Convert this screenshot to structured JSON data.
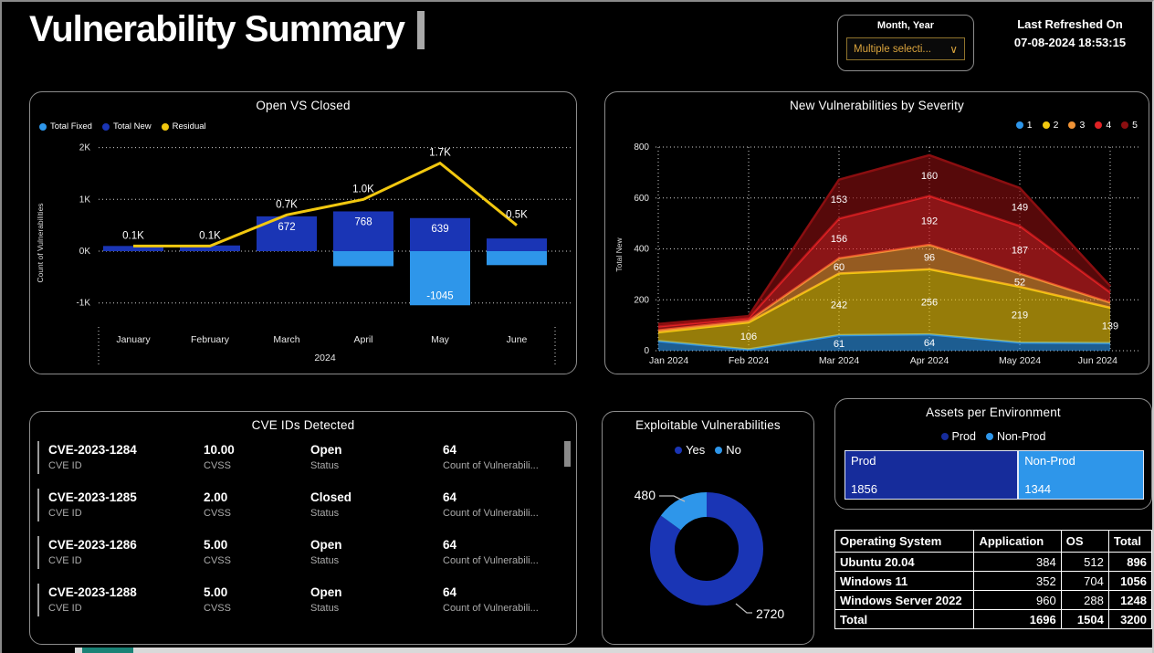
{
  "page": {
    "title": "Vulnerability Summary"
  },
  "filter": {
    "label": "Month, Year",
    "value": "Multiple selecti...",
    "chevron_icon": "chevron-down-icon"
  },
  "refresh": {
    "label": "Last Refreshed On",
    "timestamp": "07-08-2024 18:53:15"
  },
  "colors": {
    "light_blue": "#2E96EA",
    "dark_blue": "#1A35B5",
    "yellow": "#F2C80F",
    "orange": "#F09336",
    "red": "#E02225",
    "dark_red": "#8B0E10",
    "gold_text": "#D9A33C",
    "teal_accent": "#1A8276",
    "grid_dot": "#CFCFCF"
  },
  "chart_data": [
    {
      "type": "bar",
      "subtype": "stacked-column-with-line",
      "title": "Open VS Closed",
      "categories": [
        "January",
        "February",
        "March",
        "April",
        "May",
        "June"
      ],
      "year_label": "2024",
      "ylabel": "Count of Vulnerabilities",
      "yticks": [
        "2K",
        "1K",
        "0K",
        "-1K"
      ],
      "ytick_values": [
        2000,
        1000,
        0,
        -1000
      ],
      "ylim": [
        -1300,
        2200
      ],
      "series": [
        {
          "name": "Total Fixed",
          "type": "bar",
          "color": "#2E96EA",
          "values": [
            0,
            0,
            0,
            -290,
            -1045,
            -270
          ],
          "labels": [
            "",
            "",
            "",
            "",
            "-1045",
            ""
          ]
        },
        {
          "name": "Total New",
          "type": "bar",
          "color": "#1A35B5",
          "values": [
            100,
            110,
            672,
            768,
            639,
            245
          ],
          "labels": [
            "",
            "",
            "672",
            "768",
            "639",
            ""
          ]
        },
        {
          "name": "Residual",
          "type": "line",
          "color": "#F2C80F",
          "values": [
            100,
            100,
            700,
            1000,
            1700,
            500
          ],
          "labels": [
            "0.1K",
            "0.1K",
            "0.7K",
            "1.0K",
            "1.7K",
            "0.5K"
          ]
        }
      ],
      "grid": true,
      "legend_position": "top-left"
    },
    {
      "type": "area",
      "subtype": "stacked",
      "title": "New Vulnerabilities by Severity",
      "categories": [
        "Jan 2024",
        "Feb 2024",
        "Mar 2024",
        "Apr 2024",
        "May 2024",
        "Jun 2024"
      ],
      "ylabel": "Total New",
      "yticks": [
        "800",
        "600",
        "400",
        "200",
        "0"
      ],
      "ytick_values": [
        800,
        600,
        400,
        200,
        0
      ],
      "ylim": [
        0,
        800
      ],
      "series": [
        {
          "name": "1",
          "color": "#2E96EA",
          "values": [
            38,
            5,
            61,
            64,
            32,
            30
          ],
          "labels": [
            "",
            "",
            "61",
            "64",
            "",
            ""
          ]
        },
        {
          "name": "2",
          "color": "#F2C80F",
          "values": [
            34,
            106,
            242,
            256,
            219,
            139
          ],
          "labels": [
            "",
            "106",
            "242",
            "256",
            "219",
            "139"
          ]
        },
        {
          "name": "3",
          "color": "#F09336",
          "values": [
            8,
            7,
            60,
            96,
            52,
            20
          ],
          "labels": [
            "",
            "",
            "60",
            "96",
            "52",
            ""
          ]
        },
        {
          "name": "4",
          "color": "#E02225",
          "values": [
            15,
            10,
            156,
            192,
            187,
            40
          ],
          "labels": [
            "",
            "",
            "156",
            "192",
            "187",
            ""
          ]
        },
        {
          "name": "5",
          "color": "#8B0E10",
          "values": [
            10,
            8,
            153,
            160,
            149,
            25
          ],
          "labels": [
            "",
            "",
            "153",
            "160",
            "149",
            ""
          ]
        }
      ],
      "grid": true,
      "legend_position": "top-right"
    },
    {
      "type": "pie",
      "subtype": "donut",
      "title": "Exploitable Vulnerabilities",
      "series": [
        {
          "name": "Yes",
          "color": "#1A35B5",
          "value": 2720,
          "label": "2720"
        },
        {
          "name": "No",
          "color": "#2E96EA",
          "value": 480,
          "label": "480"
        }
      ],
      "legend_position": "top-center"
    },
    {
      "type": "heatmap",
      "subtype": "treemap",
      "title": "Assets per Environment",
      "series": [
        {
          "name": "Prod",
          "color": "#162C9B",
          "value": 1856,
          "label": "1856"
        },
        {
          "name": "Non-Prod",
          "color": "#2E96EA",
          "value": 1344,
          "label": "1344"
        }
      ],
      "legend_position": "top-center"
    },
    {
      "type": "table",
      "title": "Operating System breakdown",
      "headers": [
        "Operating System",
        "Application",
        "OS",
        "Total"
      ],
      "rows": [
        [
          "Ubuntu 20.04",
          "384",
          "512",
          "896"
        ],
        [
          "Windows 11",
          "352",
          "704",
          "1056"
        ],
        [
          "Windows Server 2022",
          "960",
          "288",
          "1248"
        ],
        [
          "Total",
          "1696",
          "1504",
          "3200"
        ]
      ]
    }
  ],
  "cve_list": {
    "title": "CVE IDs Detected",
    "field_labels": [
      "CVE ID",
      "CVSS",
      "Status",
      "Count of Vulnerabili..."
    ],
    "items": [
      {
        "cve_id": "CVE-2023-1284",
        "cvss": "10.00",
        "status": "Open",
        "count": "64"
      },
      {
        "cve_id": "CVE-2023-1285",
        "cvss": "2.00",
        "status": "Closed",
        "count": "64"
      },
      {
        "cve_id": "CVE-2023-1286",
        "cvss": "5.00",
        "status": "Open",
        "count": "64"
      },
      {
        "cve_id": "CVE-2023-1288",
        "cvss": "5.00",
        "status": "Open",
        "count": "64"
      }
    ]
  }
}
